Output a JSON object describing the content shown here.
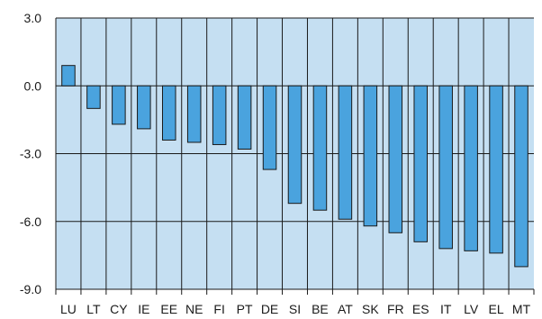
{
  "chart_data": {
    "type": "bar",
    "categories": [
      "LU",
      "LT",
      "CY",
      "IE",
      "EE",
      "NE",
      "FI",
      "PT",
      "DE",
      "SI",
      "BE",
      "AT",
      "SK",
      "FR",
      "ES",
      "IT",
      "LV",
      "EL",
      "MT"
    ],
    "values": [
      0.9,
      -1.0,
      -1.7,
      -1.9,
      -2.4,
      -2.5,
      -2.6,
      -2.8,
      -3.7,
      -5.2,
      -5.5,
      -5.9,
      -6.2,
      -6.5,
      -6.9,
      -7.2,
      -7.3,
      -7.4,
      -8.0
    ],
    "ylim": [
      -9.0,
      3.0
    ],
    "yticks": [
      3.0,
      0.0,
      -3.0,
      -6.0,
      -9.0
    ],
    "ytick_labels": [
      "3.0",
      "0.0",
      "-3.0",
      "-6.0",
      "-9.0"
    ],
    "title": "",
    "xlabel": "",
    "ylabel": "",
    "grid": true,
    "colors": {
      "plot_background": "#c5dff2",
      "bar_fill": "#4aa3de",
      "bar_stroke": "#1a1a1a",
      "grid": "#1a1a1a"
    }
  }
}
